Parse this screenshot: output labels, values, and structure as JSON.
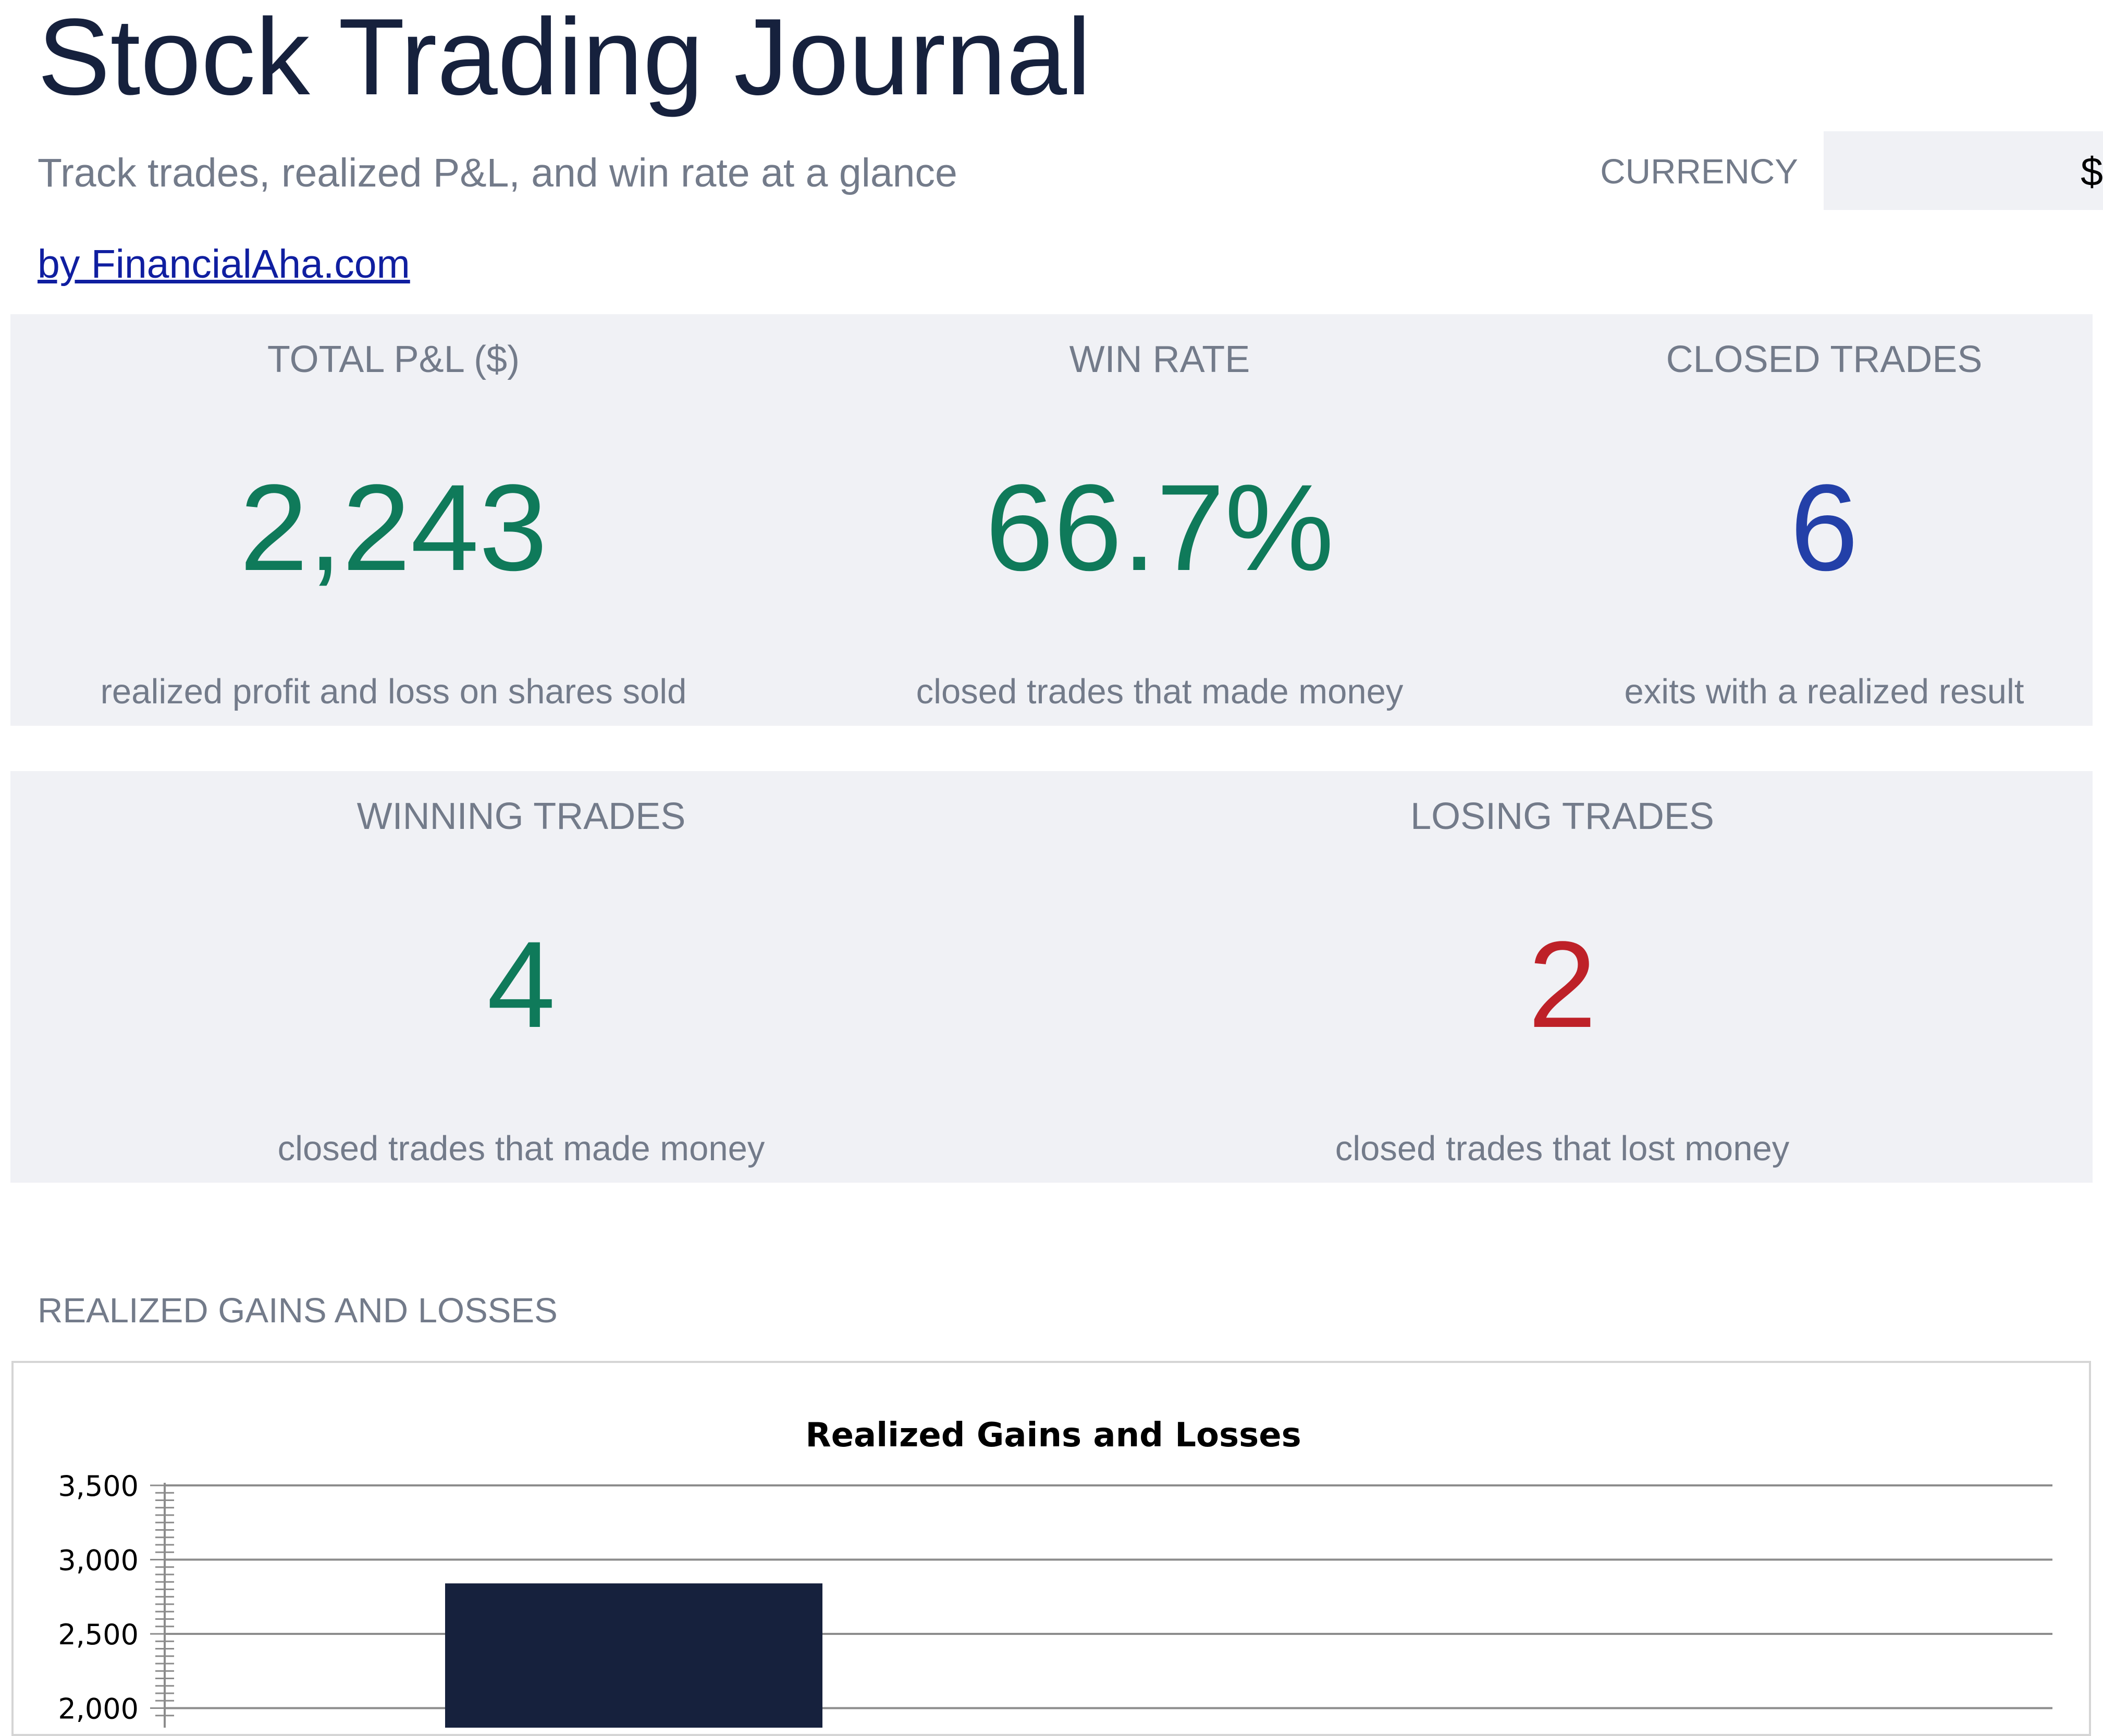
{
  "header": {
    "title": "Stock Trading Journal",
    "subtitle": "Track trades, realized P&L, and win rate at a glance",
    "currency_label": "CURRENCY",
    "currency_value": "$",
    "link_text": "by FinancialAha.com"
  },
  "kpis_row1": [
    {
      "label": "TOTAL P&L ($)",
      "value": "2,243",
      "description": "realized profit and loss on shares sold",
      "color": "#0f7a5a"
    },
    {
      "label": "WIN RATE",
      "value": "66.7%",
      "description": "closed trades that made money",
      "color": "#0f7a5a"
    },
    {
      "label": "CLOSED TRADES",
      "value": "6",
      "description": "exits with a realized result",
      "color": "#2340a8"
    }
  ],
  "kpis_row2": [
    {
      "label": "WINNING TRADES",
      "value": "4",
      "description": "closed trades that made money",
      "color": "#0f7a5a"
    },
    {
      "label": "LOSING TRADES",
      "value": "2",
      "description": "closed trades that lost money",
      "color": "#be2128"
    }
  ],
  "section": {
    "label": "REALIZED GAINS AND LOSSES"
  },
  "chart_data": {
    "type": "bar",
    "title": "Realized Gains and Losses",
    "xlabel": "",
    "ylabel": "",
    "y_tick_labels": [
      "3,500",
      "3,000",
      "2,500",
      "2,000"
    ],
    "y_ticks": [
      3500,
      3000,
      2500,
      2000
    ],
    "ylim_visible": [
      2000,
      3500
    ],
    "grid": true,
    "bar_color": "#16213d",
    "values": [
      2840
    ]
  }
}
